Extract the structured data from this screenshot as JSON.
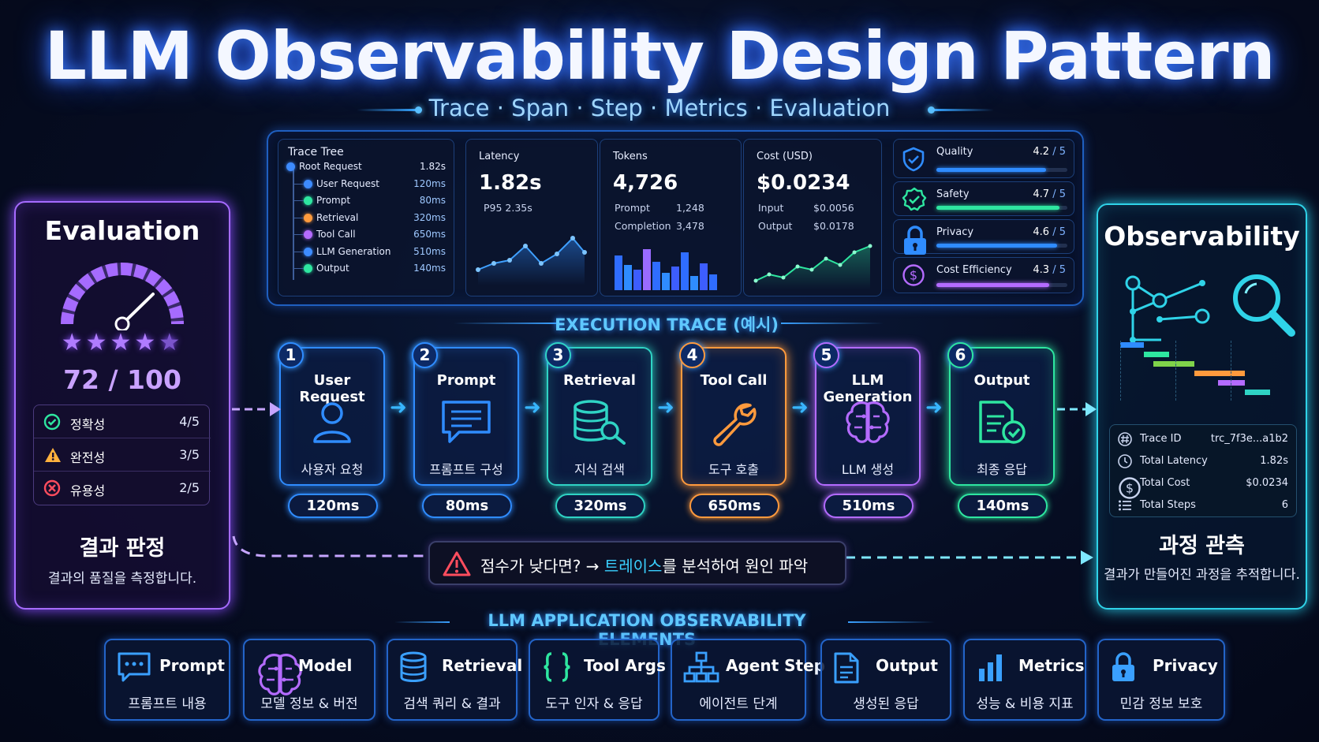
{
  "title": "LLM Observability Design Pattern",
  "subtitle": "Trace · Span · Step · Metrics · Evaluation",
  "trace_tree": {
    "title": "Trace Tree",
    "rows": [
      {
        "label": "Root Request",
        "value": "1.82s",
        "color": "#3d8bff"
      },
      {
        "label": "User Request",
        "value": "120ms",
        "color": "#3d8bff"
      },
      {
        "label": "Prompt",
        "value": "80ms",
        "color": "#2ee6a0"
      },
      {
        "label": "Retrieval",
        "value": "320ms",
        "color": "#ff9a3d"
      },
      {
        "label": "Tool Call",
        "value": "650ms",
        "color": "#b46bff"
      },
      {
        "label": "LLM Generation",
        "value": "510ms",
        "color": "#3d8bff"
      },
      {
        "label": "Output",
        "value": "140ms",
        "color": "#2ee6a0"
      }
    ]
  },
  "latency": {
    "label": "Latency",
    "value": "1.82s",
    "p95": "P95 2.35s"
  },
  "tokens": {
    "label": "Tokens",
    "value": "4,726",
    "prompt_label": "Prompt",
    "prompt_value": "1,248",
    "completion_label": "Completion",
    "completion_value": "3,478"
  },
  "cost": {
    "label": "Cost (USD)",
    "value": "$0.0234",
    "input_label": "Input",
    "input_value": "$0.0056",
    "output_label": "Output",
    "output_value": "$0.0178"
  },
  "scores": [
    {
      "label": "Quality",
      "value": "4.2",
      "max": "/ 5",
      "fraction": 0.84,
      "color": "#2f8cff",
      "icon": "shield-check-icon"
    },
    {
      "label": "Safety",
      "value": "4.7",
      "max": "/ 5",
      "fraction": 0.94,
      "color": "#2ee6a0",
      "icon": "badge-check-icon"
    },
    {
      "label": "Privacy",
      "value": "4.6",
      "max": "/ 5",
      "fraction": 0.92,
      "color": "#2f8cff",
      "icon": "lock-icon"
    },
    {
      "label": "Cost Efficiency",
      "value": "4.3",
      "max": "/ 5",
      "fraction": 0.86,
      "color": "#b46bff",
      "icon": "dollar-icon"
    }
  ],
  "evaluation": {
    "title": "Evaluation",
    "stars": 5,
    "score": "72",
    "score_max": "/ 100",
    "criteria": [
      {
        "label": "정확성",
        "value": "4/5",
        "icon": "check-circle-icon",
        "color": "#2ee6a0"
      },
      {
        "label": "완전성",
        "value": "3/5",
        "icon": "warning-icon",
        "color": "#ffb13d"
      },
      {
        "label": "유용성",
        "value": "2/5",
        "icon": "x-circle-icon",
        "color": "#ff4d5e"
      }
    ],
    "result_title": "결과 판정",
    "result_desc": "결과의 품질을 측정합니다."
  },
  "execution": {
    "title": "EXECUTION TRACE (예시)",
    "steps": [
      {
        "num": "1",
        "title": "User Request",
        "sub": "사용자 요청",
        "time": "120ms",
        "color": "#2f8cff",
        "icon": "user-icon"
      },
      {
        "num": "2",
        "title": "Prompt",
        "sub": "프롬프트 구성",
        "time": "80ms",
        "color": "#2f8cff",
        "icon": "chat-icon"
      },
      {
        "num": "3",
        "title": "Retrieval",
        "sub": "지식 검색",
        "time": "320ms",
        "color": "#2fd3c4",
        "icon": "database-search-icon"
      },
      {
        "num": "4",
        "title": "Tool Call",
        "sub": "도구 호출",
        "time": "650ms",
        "color": "#ff9a3d",
        "icon": "wrench-icon"
      },
      {
        "num": "5",
        "title": "LLM Generation",
        "sub": "LLM 생성",
        "time": "510ms",
        "color": "#b46bff",
        "icon": "brain-icon"
      },
      {
        "num": "6",
        "title": "Output",
        "sub": "최종 응답",
        "time": "140ms",
        "color": "#2ee6a0",
        "icon": "document-check-icon"
      }
    ]
  },
  "alert": {
    "prefix": "점수가 낮다면? →",
    "highlight": "트레이스",
    "suffix": "를 분석하여 원인 파악"
  },
  "observability": {
    "title": "Observability",
    "info": [
      {
        "label": "Trace ID",
        "value": "trc_7f3e...a1b2",
        "icon": "hash-icon"
      },
      {
        "label": "Total Latency",
        "value": "1.82s",
        "icon": "clock-icon"
      },
      {
        "label": "Total Cost",
        "value": "$0.0234",
        "icon": "dollar-icon"
      },
      {
        "label": "Total Steps",
        "value": "6",
        "icon": "list-icon"
      }
    ],
    "result_title": "과정 관측",
    "result_desc": "결과가 만들어진 과정을 추적합니다."
  },
  "elements": {
    "title": "LLM APPLICATION OBSERVABILITY ELEMENTS",
    "items": [
      {
        "title": "Prompt",
        "sub": "프롬프트 내용",
        "icon": "chat-dots-icon"
      },
      {
        "title": "Model",
        "sub": "모델 정보 & 버전",
        "icon": "brain-icon"
      },
      {
        "title": "Retrieval",
        "sub": "검색 쿼리 & 결과",
        "icon": "database-icon"
      },
      {
        "title": "Tool Args",
        "sub": "도구 인자 & 응답",
        "icon": "braces-icon"
      },
      {
        "title": "Agent Step",
        "sub": "에이전트 단계",
        "icon": "hierarchy-icon"
      },
      {
        "title": "Output",
        "sub": "생성된 응답",
        "icon": "document-icon"
      },
      {
        "title": "Metrics",
        "sub": "성능 & 비용 지표",
        "icon": "bar-chart-icon"
      },
      {
        "title": "Privacy",
        "sub": "민감 정보 보호",
        "icon": "lock-icon"
      }
    ]
  }
}
